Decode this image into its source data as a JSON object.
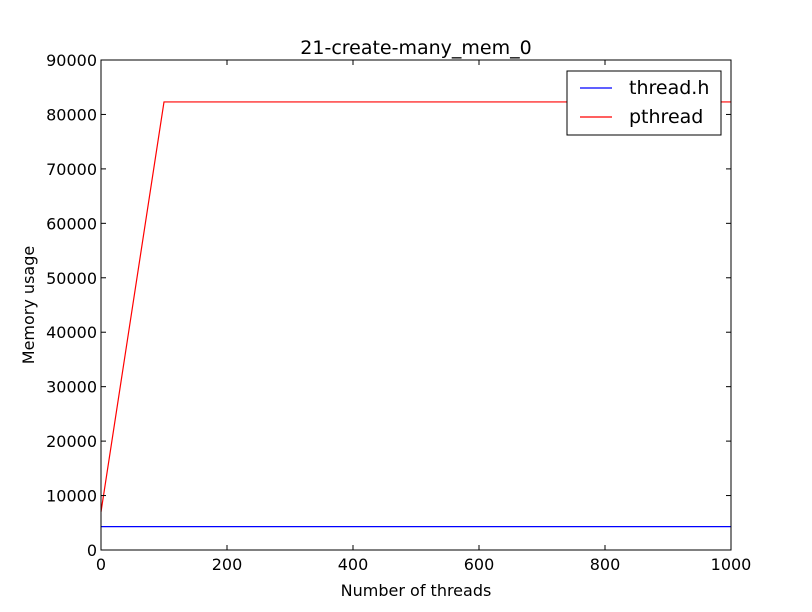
{
  "chart_data": {
    "type": "line",
    "title": "21-create-many_mem_0",
    "xlabel": "Number of threads",
    "ylabel": "Memory usage",
    "xlim": [
      0,
      1000
    ],
    "ylim": [
      0,
      90000
    ],
    "xticks": [
      0,
      200,
      400,
      600,
      800,
      1000
    ],
    "yticks": [
      0,
      10000,
      20000,
      30000,
      40000,
      50000,
      60000,
      70000,
      80000,
      90000
    ],
    "grid": false,
    "legend_position": "top-right",
    "series": [
      {
        "name": "thread.h",
        "color": "#0000ff",
        "x": [
          0,
          100,
          200,
          300,
          400,
          500,
          600,
          700,
          800,
          900,
          1000
        ],
        "y": [
          4300,
          4300,
          4300,
          4300,
          4300,
          4300,
          4300,
          4300,
          4300,
          4300,
          4300
        ]
      },
      {
        "name": "pthread",
        "color": "#ff0000",
        "x": [
          0,
          100,
          200,
          300,
          400,
          500,
          600,
          700,
          800,
          900,
          1000
        ],
        "y": [
          7000,
          82300,
          82300,
          82300,
          82300,
          82300,
          82300,
          82300,
          82300,
          82300,
          82300
        ]
      }
    ]
  }
}
